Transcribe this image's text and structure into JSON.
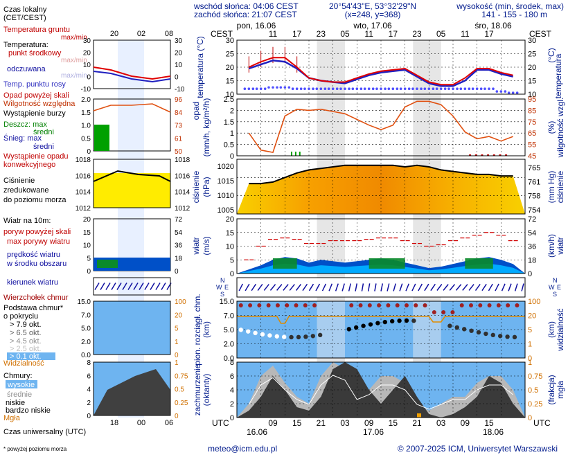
{
  "header": {
    "sunrise": "wschód słońca: 04:06 CEST",
    "sunset": "zachód słońca: 21:07 CEST",
    "coords": "20°54'43\"E, 53°32'29\"N",
    "grid": "(x=248, y=368)",
    "elev_title": "wysokość (min, środek, max)",
    "elev_values": "141 - 155 - 180 m",
    "days": [
      "pon, 16.06",
      "wto, 17.06",
      "śro, 18.06"
    ],
    "cest_left": "CEST",
    "cest_right": "CEST",
    "local_hours": [
      "11",
      "17",
      "23",
      "05",
      "11",
      "17",
      "23",
      "05",
      "11",
      "17"
    ],
    "utc_label_left": "UTC",
    "utc_label_right": "UTC",
    "utc_hours": [
      "09",
      "15",
      "21",
      "03",
      "09",
      "15",
      "21",
      "03",
      "09",
      "15"
    ],
    "utc_dates": [
      "16.06",
      "17.06",
      "18.06"
    ]
  },
  "legend": {
    "time_local": "Czas lokalny",
    "time_local2": "(CET/CEST)",
    "time_ticks": [
      "20",
      "02",
      "08"
    ],
    "ground_temp": "Temperatura gruntu",
    "ground_temp2": "max/min",
    "temp": "Temperatura:",
    "temp_mid": "punkt środkowy",
    "temp_maxmin": "max/min",
    "temp_feel": "odczuwana",
    "temp_feel2": "max/min",
    "dew": "Temp. punktu rosy",
    "precip_over": "Opad powyżej skali",
    "humidity": "Wilgotność względna",
    "storm": "Wystąpienie burzy",
    "rain": "Deszcz: max",
    "rain_mean": "średni",
    "snow": "Śnieg: max",
    "snow_mean": "średni",
    "conv": "Wystąpienie opadu",
    "conv2": "konwekcyjnego",
    "pressure1": "Ciśnienie",
    "pressure2": "zredukowane",
    "pressure3": "do poziomu morza",
    "wind": "Wiatr na 10m:",
    "gust_over": "poryw powyżej skali",
    "gust_max": "max porywy wiatru",
    "wind_speed": "prędkość wiatru",
    "wind_area": "w środku obszaru",
    "wind_dir": "kierunek wiatru",
    "cb": "Wierzchołek chmur",
    "cloud_base": "Podstawa chmur*",
    "cloud_base2": "o pokryciu",
    "okt": [
      "> 7.9 okt.",
      "> 6.5 okt.",
      "> 4.5 okt.",
      "> 2.5 okt.",
      "> 0.1 okt."
    ],
    "visibility": "Widzialność",
    "clouds": "Chmury:",
    "cl_high": "wysokie",
    "cl_mid": "średnie",
    "cl_low": "niskie",
    "cl_vlow": "bardzo niskie",
    "fog": "Mgła",
    "utc_time": "Czas uniwersalny (UTC)",
    "utc_ticks": [
      "18",
      "00",
      "06"
    ],
    "footnote": "* powyżej poziomu morza"
  },
  "axes": {
    "temp_left": [
      "30",
      "25",
      "20",
      "15",
      "10"
    ],
    "temp_right": [
      "30",
      "25",
      "20",
      "15",
      "10"
    ],
    "temp_ylabel": "temperatura (°C)",
    "precip_left": [
      "2.5",
      "2",
      "1.5",
      "1",
      "0.5",
      "0"
    ],
    "hum_right": [
      "95",
      "85",
      "75",
      "65",
      "55",
      "45"
    ],
    "precip_ylabel": "opad (mm/h, kg/m²/h)",
    "hum_ylabel": "(%) wilgotność wzgl.",
    "press_left": [
      "1020",
      "1015",
      "1010",
      "1005"
    ],
    "press_right": [
      "765",
      "761",
      "758",
      "754"
    ],
    "press_ylabel": "ciśnienie (hPa)",
    "press_ylabel_r": "(mm Hg) ciśnienie",
    "wind_left": [
      "20",
      "15",
      "10",
      "5",
      "0"
    ],
    "wind_right": [
      "72",
      "54",
      "36",
      "18",
      "0"
    ],
    "wind_ylabel": "wiatr (m/s)",
    "wind_ylabel_r": "(km/h) wiatr",
    "cloud_left": [
      "15.0",
      "7.0",
      "5.0",
      "2.0",
      "0.0"
    ],
    "vis_right": [
      "100",
      "20",
      "5",
      "1",
      "0"
    ],
    "cloud_ylabel": "pion. rozciągł. chm. (km)",
    "vis_ylabel": "(km) widzialność",
    "cov_left": [
      "8",
      "6",
      "4",
      "2",
      "0"
    ],
    "cov_right": [
      "1",
      "0.75",
      "0.5",
      "0.25",
      "0"
    ],
    "cov_ylabel": "zachmurzenie (oktanty)",
    "cov_ylabel_r": "(frakcja) mgła",
    "mini_temp_left": [
      "30",
      "20",
      "10",
      "0",
      "-10"
    ],
    "mini_temp_right": [
      "30",
      "20",
      "10",
      "0",
      "-10"
    ],
    "mini_precip_left": [
      "2.0",
      "1.5",
      "1.0",
      "0.5",
      "0"
    ],
    "mini_hum_right": [
      "96",
      "84",
      "73",
      "61",
      "50"
    ],
    "mini_press_left": [
      "1018",
      "1016",
      "1014",
      "1012"
    ],
    "mini_press_right": [
      "1018",
      "1016",
      "1014",
      "1012"
    ],
    "mini_wind_left": [
      "20",
      "15",
      "10",
      "5",
      "0"
    ],
    "mini_wind_right": [
      "72",
      "54",
      "36",
      "18",
      "0"
    ],
    "mini_cloud_left": [
      "15.0",
      "7.0",
      "5.0",
      "2.0",
      "0.0"
    ],
    "mini_vis_right": [
      "100",
      "20",
      "5",
      "1",
      "0"
    ],
    "mini_cov_left": [
      "8",
      "6",
      "4",
      "2",
      "0"
    ],
    "mini_cov_right": [
      "1",
      "0.75",
      "0.5",
      "0.25",
      "0"
    ]
  },
  "colors": {
    "panel_bg": "#ffffff",
    "night": "#e6e6e6",
    "temp": "#e00000",
    "feel": "#2020c0",
    "dew": "#4040ff",
    "hum": "#e05010",
    "pressure": "#000000",
    "gust": "#d00000",
    "wind_fill": "#0050c8",
    "cloud_bg": "#6eb4f0",
    "vis": "#e08c00",
    "high_clouds": "#c0c0c0",
    "low_clouds": "#404040"
  },
  "chart_data": [
    {
      "type": "line",
      "title": "",
      "ylabel": "temperatura (°C)",
      "ylim": [
        10,
        30
      ],
      "x_utc_hours": [
        3,
        6,
        9,
        12,
        15,
        18,
        21,
        24,
        27,
        30,
        33,
        36,
        39,
        42,
        45,
        48,
        51,
        54,
        57,
        60,
        63,
        66,
        69
      ],
      "series": [
        {
          "name": "punkt środkowy",
          "values": [
            20,
            22,
            23.5,
            23.5,
            20,
            16,
            15,
            14.5,
            14.5,
            16,
            17.5,
            18.5,
            19,
            19.5,
            17,
            14.5,
            13.5,
            13.5,
            16,
            19.5,
            19.5,
            18,
            17
          ]
        },
        {
          "name": "odczuwana",
          "values": [
            19.5,
            21,
            22.5,
            22,
            19.5,
            16,
            15,
            14.5,
            14,
            15.5,
            17,
            18,
            18.5,
            19,
            16.5,
            14,
            13,
            13,
            15,
            19,
            19,
            17.5,
            16.5
          ]
        },
        {
          "name": "Temp. punktu rosy",
          "values": [
            12,
            12,
            12.5,
            12.5,
            12,
            12,
            12,
            12,
            12,
            12,
            12,
            12,
            12,
            12,
            12,
            12,
            12,
            12,
            12,
            12,
            12,
            11,
            10.5
          ]
        }
      ]
    },
    {
      "type": "line",
      "title": "",
      "ylabel": "opad (mm/h, kg/m²/h)",
      "ylim": [
        0,
        2.5
      ],
      "y2label": "wilgotność wzgl. (%)",
      "y2lim": [
        45,
        95
      ],
      "x_utc_hours": [
        3,
        6,
        9,
        12,
        15,
        18,
        21,
        24,
        27,
        30,
        33,
        36,
        39,
        42,
        45,
        48,
        51,
        54,
        57,
        60,
        63,
        66,
        69
      ],
      "series": [
        {
          "name": "Wilgotność względna",
          "values": [
            65,
            50,
            48,
            80,
            86,
            85,
            86,
            84,
            82,
            77,
            72,
            68,
            72,
            88,
            93,
            93,
            90,
            80,
            66,
            60,
            62,
            58,
            62
          ]
        }
      ]
    },
    {
      "type": "line",
      "title": "",
      "ylabel": "ciśnienie (hPa)",
      "ylim": [
        1005,
        1023
      ],
      "x_utc_hours": [
        3,
        6,
        9,
        12,
        15,
        18,
        21,
        24,
        27,
        30,
        33,
        36,
        39,
        42,
        45,
        48,
        51,
        54,
        57,
        60,
        63,
        66,
        69
      ],
      "series": [
        {
          "name": "Ciśnienie",
          "values": [
            1015,
            1015,
            1015.5,
            1017,
            1018.5,
            1019.5,
            1020,
            1020.5,
            1021,
            1021,
            1021,
            1021,
            1021,
            1020.5,
            1021,
            1020.5,
            1019.5,
            1019,
            1018.5,
            1018,
            1018,
            1017.5,
            1017.5
          ]
        }
      ]
    },
    {
      "type": "area",
      "title": "",
      "ylabel": "wiatr (m/s)",
      "ylim": [
        0,
        20
      ],
      "x_utc_hours": [
        3,
        6,
        9,
        12,
        15,
        18,
        21,
        24,
        27,
        30,
        33,
        36,
        39,
        42,
        45,
        48,
        51,
        54,
        57,
        60,
        63,
        66,
        69
      ],
      "series": [
        {
          "name": "prędkość wiatru",
          "values": [
            1.5,
            3,
            5,
            6,
            5.5,
            4,
            5,
            4.5,
            4,
            4.5,
            5,
            5.5,
            5,
            4,
            3,
            2,
            2.5,
            3.5,
            4.5,
            5.5,
            6,
            5,
            3.5
          ]
        },
        {
          "name": "max porywy wiatru",
          "values": [
            5,
            10,
            12.5,
            13,
            12.5,
            11,
            11,
            12,
            12,
            12,
            12.5,
            13,
            13,
            12,
            11,
            10,
            10.5,
            12,
            13,
            14,
            15,
            14,
            12
          ]
        }
      ]
    },
    {
      "type": "area",
      "title": "",
      "ylabel": "zachmurzenie (oktanty)",
      "ylim": [
        0,
        8
      ],
      "y2label": "mgła (frakcja)",
      "y2lim": [
        0,
        1
      ],
      "x_utc_hours": [
        3,
        6,
        9,
        12,
        15,
        18,
        21,
        24,
        27,
        30,
        33,
        36,
        39,
        42,
        45,
        48,
        51,
        54,
        57,
        60,
        63,
        66,
        69
      ],
      "series": [
        {
          "name": "wysokie",
          "values": [
            2,
            6,
            7.5,
            5,
            3,
            2,
            6,
            8,
            7,
            3,
            4,
            6,
            6,
            5,
            2,
            1,
            2,
            3,
            3,
            5,
            6,
            6,
            4
          ]
        },
        {
          "name": "niskie",
          "values": [
            1,
            3,
            6,
            4,
            1.5,
            1,
            3,
            7,
            8,
            7,
            4,
            2,
            4,
            6,
            3,
            0.5,
            0,
            0.5,
            1.5,
            3,
            6,
            5,
            2
          ]
        }
      ]
    }
  ],
  "footer": {
    "email": "meteo@icm.edu.pl",
    "copyright": "© 2007-2025 ICM, Uniwersytet Warszawski"
  }
}
